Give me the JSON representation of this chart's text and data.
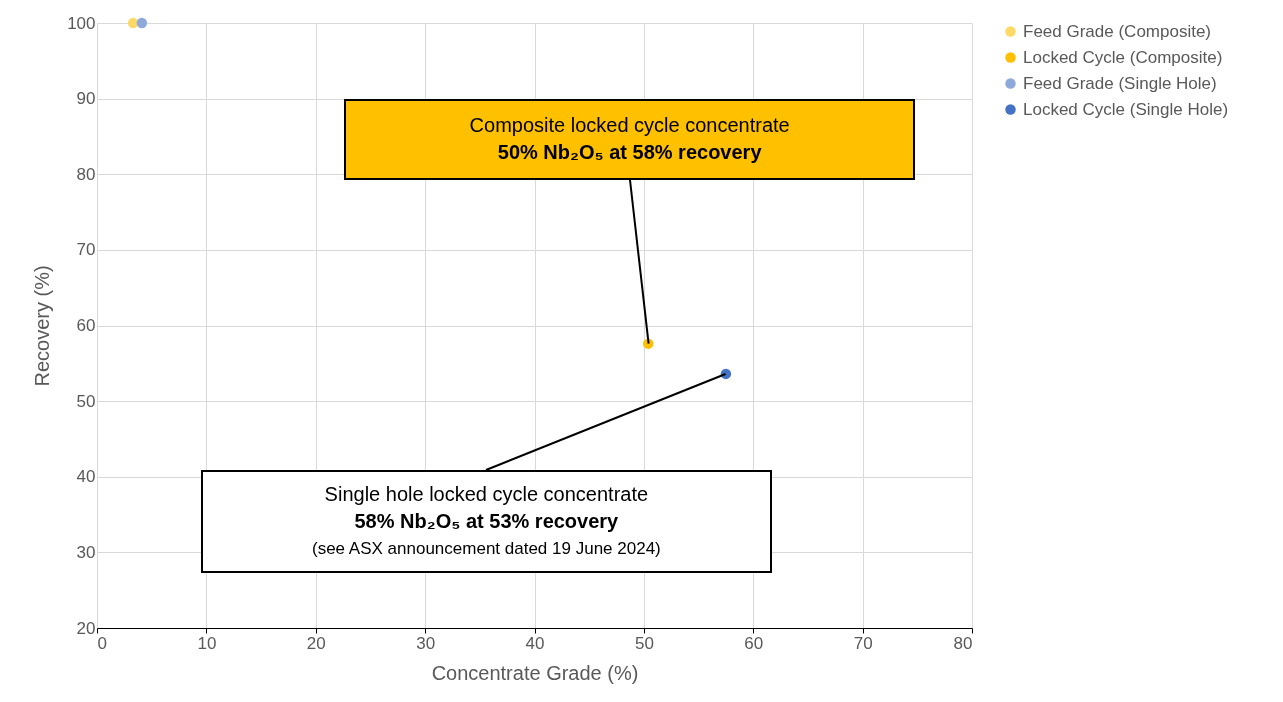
{
  "chart_data": {
    "type": "scatter",
    "xlabel": "Concentrate Grade (%)",
    "ylabel": "Recovery (%)",
    "xlim": [
      0,
      80
    ],
    "xticks": [
      0,
      10,
      20,
      30,
      40,
      50,
      60,
      70,
      80
    ],
    "ylim": [
      20,
      100
    ],
    "yticks": [
      20,
      30,
      40,
      50,
      60,
      70,
      80,
      90,
      100
    ],
    "grid": true,
    "legend": "right",
    "marker": "circle",
    "series": [
      {
        "name": "Feed Grade (Composite)",
        "color": "#ffd966",
        "x": [
          3.3
        ],
        "values": [
          100
        ]
      },
      {
        "name": "Locked Cycle (Composite)",
        "color": "#ffc000",
        "x": [
          50.4
        ],
        "values": [
          57.6
        ]
      },
      {
        "name": "Feed Grade (Single Hole)",
        "color": "#8eaadb",
        "x": [
          4.1
        ],
        "values": [
          100
        ]
      },
      {
        "name": "Locked Cycle (Single Hole)",
        "color": "#4472c4",
        "x": [
          57.5
        ],
        "values": [
          53.6
        ]
      }
    ],
    "annotations": [
      {
        "text": "Composite locked cycle concentrate\n50% Nb₂O₅ at 58% recovery",
        "x": 50.4,
        "y": 57.6
      },
      {
        "text": "Single hole locked cycle concentrate\n58% Nb₂O₅ at 53% recovery\n(see ASX announcement dated 19 June 2024)",
        "x": 57.5,
        "y": 53.6
      }
    ]
  }
}
